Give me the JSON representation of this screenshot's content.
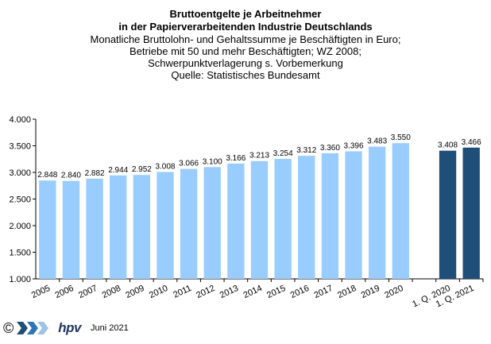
{
  "chart_data": {
    "type": "bar",
    "title_lines": [
      "Bruttoentgelte je Arbeitnehmer",
      "in der Papierverarbeitenden Industrie Deutschlands"
    ],
    "subtitle_lines": [
      "Monatliche Bruttolohn- und Gehaltssumme je Beschäftigten in Euro;",
      "Betriebe mit 50 und mehr Beschäftigten; WZ 2008;",
      "Schwerpunktverlagerung  s. Vorbemerkung",
      "Quelle: Statistisches Bundesamt"
    ],
    "categories": [
      "2005",
      "2006",
      "2007",
      "2008",
      "2009",
      "2010",
      "2011",
      "2012",
      "2013",
      "2014",
      "2015",
      "2016",
      "2017",
      "2018",
      "2019",
      "2020",
      "",
      "1. Q. 2020",
      "1. Q. 2021"
    ],
    "values": [
      2848,
      2840,
      2882,
      2944,
      2952,
      3008,
      3066,
      3100,
      3166,
      3213,
      3254,
      3312,
      3360,
      3396,
      3483,
      3550,
      null,
      3408,
      3466
    ],
    "value_labels": [
      "2.848",
      "2.840",
      "2.882",
      "2.944",
      "2.952",
      "3.008",
      "3.066",
      "3.100",
      "3.166",
      "3.213",
      "3.254",
      "3.312",
      "3.360",
      "3.396",
      "3.483",
      "3.550",
      "",
      "3.408",
      "3.466"
    ],
    "bar_colors": [
      "#99ccff",
      "#99ccff",
      "#99ccff",
      "#99ccff",
      "#99ccff",
      "#99ccff",
      "#99ccff",
      "#99ccff",
      "#99ccff",
      "#99ccff",
      "#99ccff",
      "#99ccff",
      "#99ccff",
      "#99ccff",
      "#99ccff",
      "#99ccff",
      "",
      "#1f4e79",
      "#1f4e79"
    ],
    "yticks": [
      1000,
      1500,
      2000,
      2500,
      3000,
      3500,
      4000
    ],
    "ytick_labels": [
      "1.000",
      "1.500",
      "2.000",
      "2.500",
      "3.000",
      "3.500",
      "4.000"
    ],
    "ylim": [
      1000,
      4000
    ],
    "grid": false,
    "legend": "none"
  },
  "footer": {
    "copyright": "©",
    "brand": "hpv",
    "date": "Juni 2021",
    "logo_icon": "chevron-arrows-icon"
  }
}
